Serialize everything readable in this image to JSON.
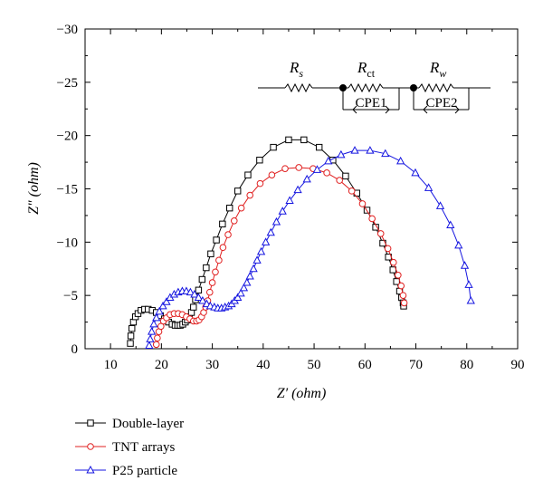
{
  "chart_data": {
    "type": "scatter",
    "xlabel": "Z′ (ohm)",
    "ylabel": "Z″ (ohm)",
    "xlim": [
      5,
      90
    ],
    "ylim": [
      0,
      -30
    ],
    "xticks": [
      10,
      20,
      30,
      40,
      50,
      60,
      70,
      80,
      90
    ],
    "yticks": [
      0,
      -5,
      -10,
      -15,
      -20,
      -25,
      -30
    ],
    "xtick_labels": [
      "10",
      "20",
      "30",
      "40",
      "50",
      "60",
      "70",
      "80",
      "90"
    ],
    "ytick_labels": [
      "0",
      "−5",
      "−10",
      "−15",
      "−20",
      "−25",
      "−30"
    ],
    "grid": false,
    "legend_position": "below-left",
    "circuit": {
      "r1": "R",
      "r1_sub": "s",
      "r2": "R",
      "r2_sub": "ct",
      "r3": "R",
      "r3_sub": "w",
      "cpe1": "CPE1",
      "cpe2": "CPE2"
    },
    "series": [
      {
        "name": "Double-layer",
        "color": "#000000",
        "marker": "square",
        "x": [
          13.9,
          14.0,
          14.2,
          14.5,
          14.9,
          15.4,
          16.0,
          16.7,
          17.4,
          18.2,
          19.0,
          19.8,
          20.6,
          21.4,
          22.1,
          22.7,
          23.2,
          23.7,
          24.2,
          24.7,
          25.1,
          25.5,
          25.9,
          26.3,
          26.7,
          27.3,
          28.0,
          28.8,
          29.7,
          30.8,
          32.0,
          33.4,
          35.0,
          37.0,
          39.3,
          42.0,
          45.0,
          48.0,
          51.0,
          53.7,
          56.2,
          58.4,
          60.4,
          62.1,
          63.5,
          64.6,
          65.5,
          66.2,
          66.8,
          67.2,
          67.5,
          67.6
        ],
        "y": [
          -0.5,
          -1.2,
          -1.9,
          -2.5,
          -3.0,
          -3.3,
          -3.6,
          -3.7,
          -3.7,
          -3.6,
          -3.4,
          -3.1,
          -2.8,
          -2.5,
          -2.3,
          -2.2,
          -2.2,
          -2.2,
          -2.3,
          -2.5,
          -2.7,
          -3.0,
          -3.4,
          -3.9,
          -4.6,
          -5.5,
          -6.5,
          -7.6,
          -8.9,
          -10.2,
          -11.7,
          -13.2,
          -14.8,
          -16.3,
          -17.7,
          -18.9,
          -19.6,
          -19.6,
          -18.9,
          -17.7,
          -16.2,
          -14.6,
          -13.0,
          -11.4,
          -9.9,
          -8.6,
          -7.4,
          -6.3,
          -5.4,
          -4.8,
          -4.3,
          -4.0
        ]
      },
      {
        "name": "TNT arrays",
        "color": "#e02020",
        "marker": "circle",
        "x": [
          19.0,
          19.2,
          19.5,
          19.9,
          20.4,
          21.0,
          21.7,
          22.5,
          23.3,
          24.1,
          24.9,
          25.6,
          26.3,
          26.9,
          27.4,
          27.9,
          28.3,
          28.7,
          29.1,
          29.5,
          30.0,
          30.6,
          31.3,
          32.1,
          33.1,
          34.3,
          35.7,
          37.4,
          39.4,
          41.7,
          44.3,
          47.0,
          49.8,
          52.5,
          55.0,
          57.4,
          59.5,
          61.4,
          63.1,
          64.5,
          65.6,
          66.5,
          67.1,
          67.5,
          67.7
        ],
        "y": [
          -0.4,
          -1.0,
          -1.6,
          -2.1,
          -2.6,
          -2.9,
          -3.2,
          -3.3,
          -3.3,
          -3.2,
          -3.0,
          -2.8,
          -2.6,
          -2.6,
          -2.7,
          -3.0,
          -3.4,
          -3.9,
          -4.5,
          -5.3,
          -6.2,
          -7.2,
          -8.3,
          -9.5,
          -10.7,
          -12.0,
          -13.2,
          -14.4,
          -15.5,
          -16.3,
          -16.9,
          -17.0,
          -16.9,
          -16.5,
          -15.8,
          -14.8,
          -13.6,
          -12.2,
          -10.8,
          -9.4,
          -8.1,
          -6.9,
          -5.9,
          -5.0,
          -4.3
        ]
      },
      {
        "name": "P25 particle",
        "color": "#1515e0",
        "marker": "triangle",
        "x": [
          17.6,
          17.8,
          18.1,
          18.5,
          19.0,
          19.6,
          20.3,
          21.0,
          21.7,
          22.5,
          23.3,
          24.1,
          24.9,
          25.7,
          26.5,
          27.3,
          28.1,
          28.9,
          29.6,
          30.4,
          31.1,
          31.8,
          32.5,
          33.2,
          33.8,
          34.4,
          35.0,
          35.6,
          36.2,
          36.8,
          37.4,
          38.1,
          38.8,
          39.6,
          40.5,
          41.5,
          42.6,
          43.8,
          45.2,
          46.8,
          48.6,
          50.6,
          52.8,
          55.3,
          58.0,
          61.0,
          64.0,
          67.0,
          69.9,
          72.5,
          74.8,
          76.8,
          78.4,
          79.6,
          80.4,
          80.8
        ],
        "y": [
          -0.3,
          -0.9,
          -1.6,
          -2.3,
          -2.9,
          -3.5,
          -4.0,
          -4.4,
          -4.8,
          -5.1,
          -5.3,
          -5.4,
          -5.4,
          -5.3,
          -5.1,
          -4.8,
          -4.5,
          -4.2,
          -4.0,
          -3.9,
          -3.8,
          -3.8,
          -3.9,
          -4.0,
          -4.2,
          -4.5,
          -4.8,
          -5.2,
          -5.7,
          -6.2,
          -6.8,
          -7.5,
          -8.3,
          -9.1,
          -10.0,
          -10.9,
          -11.9,
          -12.9,
          -13.9,
          -14.9,
          -15.9,
          -16.8,
          -17.6,
          -18.2,
          -18.6,
          -18.6,
          -18.3,
          -17.6,
          -16.5,
          -15.1,
          -13.4,
          -11.6,
          -9.7,
          -7.8,
          -6.0,
          -4.5
        ]
      }
    ]
  }
}
